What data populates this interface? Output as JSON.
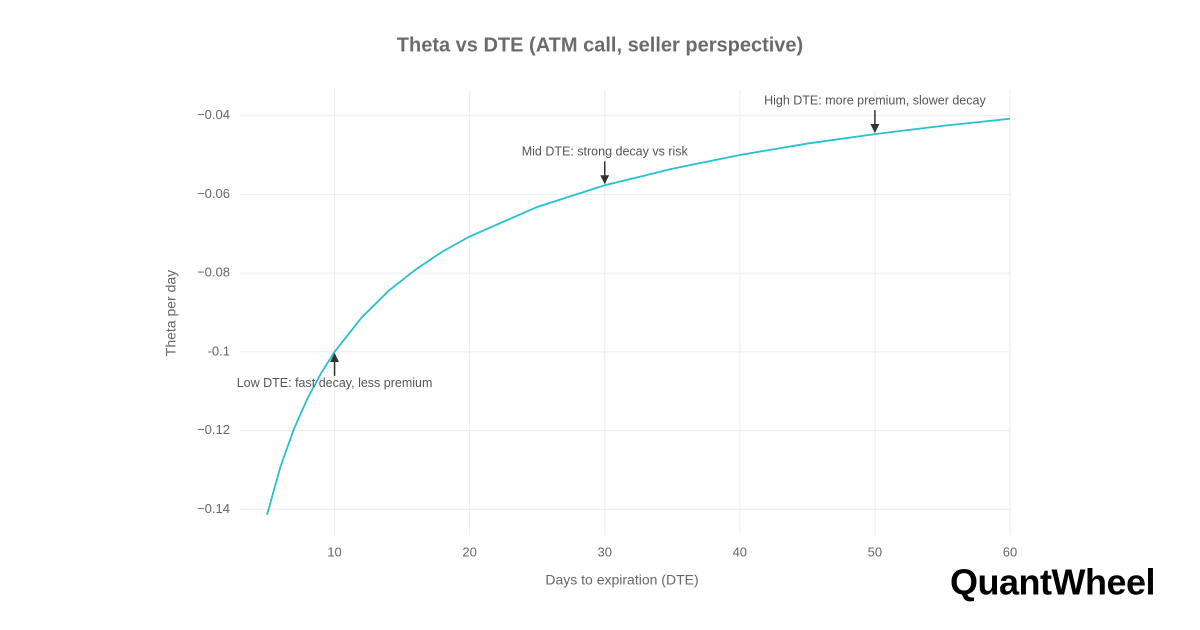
{
  "chart_data": {
    "type": "line",
    "title": "Theta vs DTE (ATM call, seller perspective)",
    "x_label": "Days to expiration (DTE)",
    "y_label": "Theta per day",
    "x": [
      5,
      6,
      7,
      8,
      9,
      10,
      12,
      14,
      16,
      18,
      20,
      25,
      30,
      35,
      40,
      45,
      50,
      55,
      60
    ],
    "values": [
      -0.1414,
      -0.1291,
      -0.1195,
      -0.1118,
      -0.1054,
      -0.1,
      -0.0913,
      -0.0845,
      -0.0791,
      -0.0745,
      -0.0707,
      -0.0632,
      -0.0577,
      -0.0535,
      -0.05,
      -0.0471,
      -0.0447,
      -0.0426,
      -0.0408
    ],
    "color": "#26c0cf",
    "xlim": [
      3,
      60
    ],
    "xticks": [
      10,
      20,
      30,
      40,
      50,
      60
    ],
    "ylim": [
      -0.1465,
      -0.0335
    ],
    "yticks": [
      {
        "value": -0.14,
        "label": "−0.14"
      },
      {
        "value": -0.12,
        "label": "−0.12"
      },
      -0.1,
      {
        "value": -0.08,
        "label": "−0.08"
      },
      {
        "value": -0.06,
        "label": "−0.06"
      },
      {
        "value": -0.04,
        "label": "−0.04"
      }
    ],
    "grid": true,
    "annotations": [
      {
        "text": "Low DTE: fast decay, less premium",
        "x": 10,
        "y": -0.1
      },
      {
        "text": "Mid DTE: strong decay vs risk",
        "x": 30,
        "y": -0.0577
      },
      {
        "text": "High DTE: more premium, slower decay",
        "x": 50,
        "y": -0.0447
      }
    ]
  },
  "brand": "QuantWheel"
}
